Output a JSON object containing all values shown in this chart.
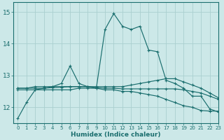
{
  "bg_color": "#cce8e8",
  "grid_color": "#aacfcf",
  "line_color": "#1a6e6e",
  "xlabel": "Humidex (Indice chaleur)",
  "xlim": [
    -0.5,
    23
  ],
  "ylim": [
    11.5,
    15.3
  ],
  "yticks": [
    12,
    13,
    14,
    15
  ],
  "xticks": [
    0,
    1,
    2,
    3,
    4,
    5,
    6,
    7,
    8,
    9,
    10,
    11,
    12,
    13,
    14,
    15,
    16,
    17,
    18,
    19,
    20,
    21,
    22,
    23
  ],
  "series": [
    [
      11.65,
      12.15,
      12.55,
      12.6,
      12.65,
      12.75,
      13.3,
      12.75,
      12.65,
      12.6,
      14.45,
      14.95,
      14.55,
      14.45,
      14.55,
      13.8,
      13.75,
      12.85,
      12.75,
      12.6,
      12.35,
      12.35,
      11.95,
      11.85
    ],
    [
      12.6,
      12.6,
      12.65,
      12.65,
      12.65,
      12.65,
      12.65,
      12.65,
      12.65,
      12.65,
      12.65,
      12.65,
      12.65,
      12.7,
      12.75,
      12.8,
      12.85,
      12.9,
      12.9,
      12.8,
      12.7,
      12.6,
      12.45,
      12.3
    ],
    [
      12.55,
      12.55,
      12.55,
      12.55,
      12.55,
      12.55,
      12.55,
      12.6,
      12.6,
      12.6,
      12.55,
      12.55,
      12.5,
      12.5,
      12.45,
      12.4,
      12.35,
      12.25,
      12.15,
      12.05,
      12.0,
      11.9,
      11.88,
      11.88
    ],
    [
      12.6,
      12.6,
      12.6,
      12.6,
      12.62,
      12.63,
      12.65,
      12.65,
      12.65,
      12.62,
      12.6,
      12.6,
      12.58,
      12.58,
      12.58,
      12.58,
      12.58,
      12.58,
      12.58,
      12.55,
      12.5,
      12.45,
      12.35,
      12.25
    ]
  ]
}
